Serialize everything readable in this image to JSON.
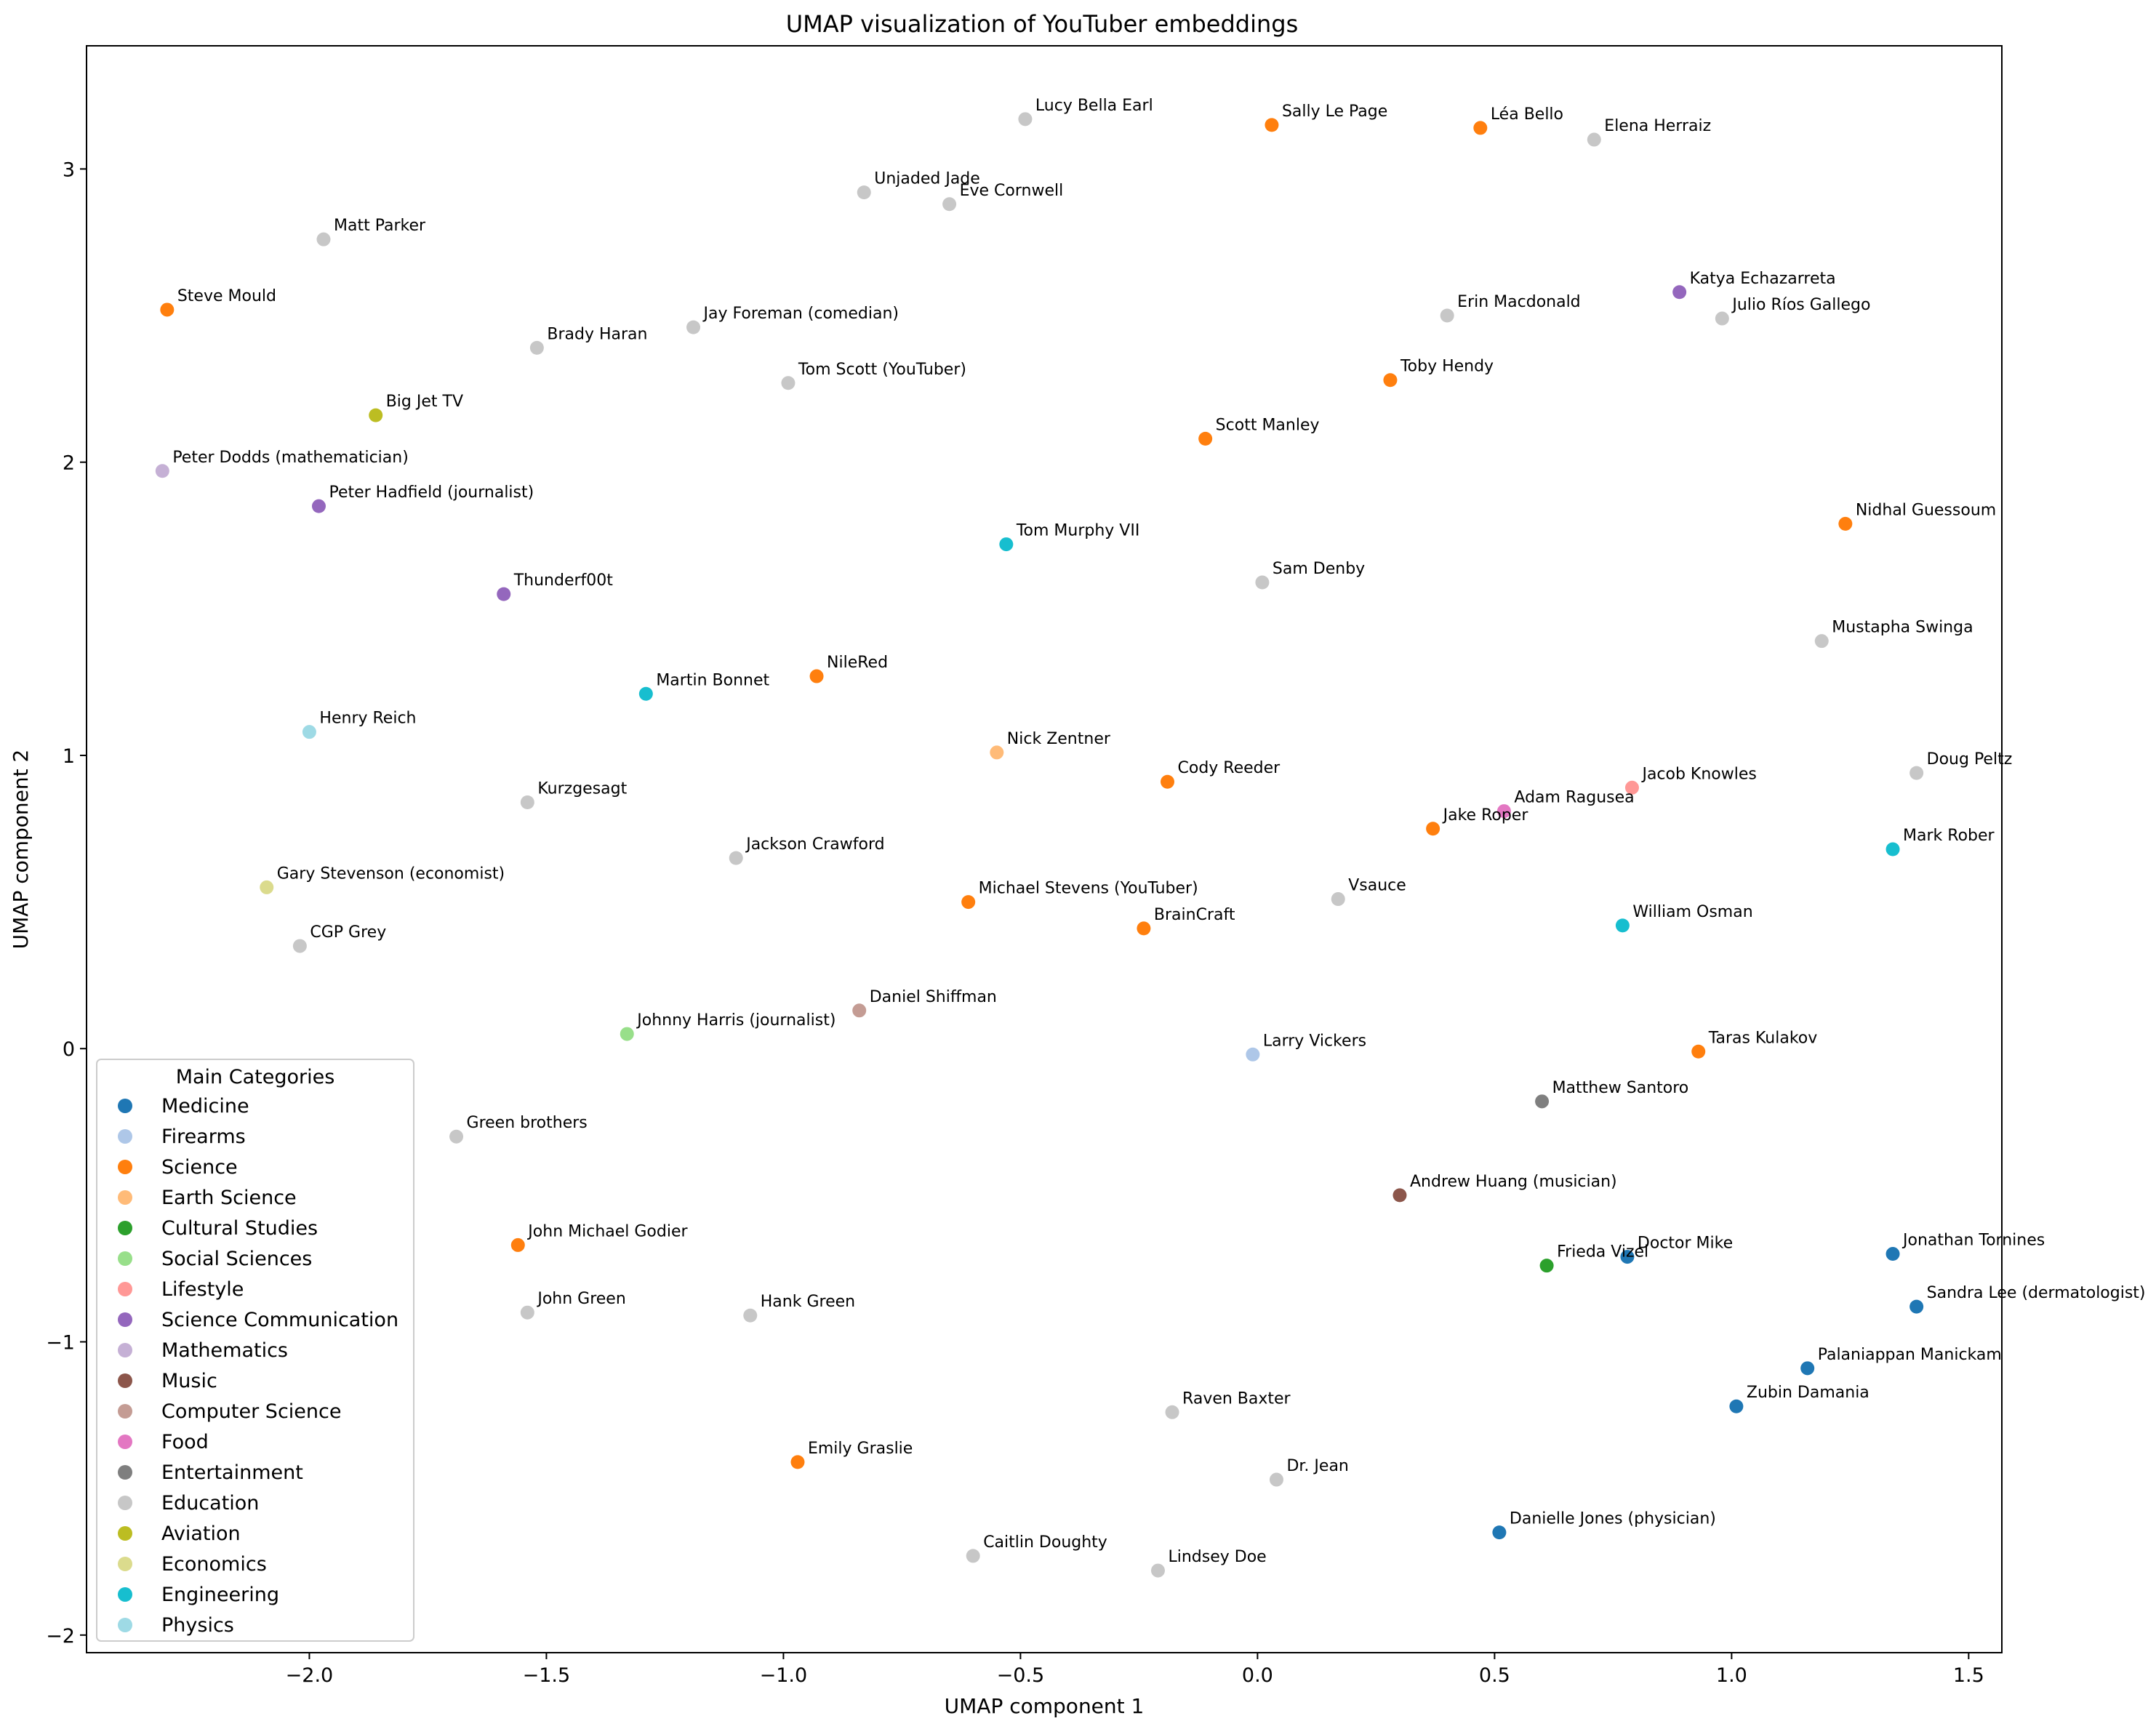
{
  "chart_data": {
    "type": "scatter",
    "title": "UMAP visualization of YouTuber embeddings",
    "xlabel": "UMAP component 1",
    "ylabel": "UMAP component 2",
    "xlim": [
      -2.47,
      1.57
    ],
    "ylim": [
      -2.06,
      3.42
    ],
    "xticks": [
      -2.0,
      -1.5,
      -1.0,
      -0.5,
      0.0,
      0.5,
      1.0,
      1.5
    ],
    "yticks": [
      -2,
      -1,
      0,
      1,
      2,
      3
    ],
    "xtick_labels": [
      "−2.0",
      "−1.5",
      "−1.0",
      "−0.5",
      "0.0",
      "0.5",
      "1.0",
      "1.5"
    ],
    "ytick_labels": [
      "−2",
      "−1",
      "0",
      "1",
      "2",
      "3"
    ],
    "grid": false,
    "legend": {
      "title": "Main Categories",
      "placement": "lower-left",
      "entries": [
        {
          "name": "Medicine",
          "color": "#1f77b4"
        },
        {
          "name": "Firearms",
          "color": "#aec7e8"
        },
        {
          "name": "Science",
          "color": "#ff7f0e"
        },
        {
          "name": "Earth Science",
          "color": "#ffbb78"
        },
        {
          "name": "Cultural Studies",
          "color": "#2ca02c"
        },
        {
          "name": "Social Sciences",
          "color": "#98df8a"
        },
        {
          "name": "Lifestyle",
          "color": "#ff9896"
        },
        {
          "name": "Science Communication",
          "color": "#9467bd"
        },
        {
          "name": "Mathematics",
          "color": "#c5b0d5"
        },
        {
          "name": "Music",
          "color": "#8c564b"
        },
        {
          "name": "Computer Science",
          "color": "#c49c94"
        },
        {
          "name": "Food",
          "color": "#e377c2"
        },
        {
          "name": "Entertainment",
          "color": "#7f7f7f"
        },
        {
          "name": "Education",
          "color": "#c7c7c7"
        },
        {
          "name": "Aviation",
          "color": "#bcbd22"
        },
        {
          "name": "Economics",
          "color": "#dbdb8d"
        },
        {
          "name": "Engineering",
          "color": "#17becf"
        },
        {
          "name": "Physics",
          "color": "#9edae5"
        }
      ]
    },
    "points": [
      {
        "label": "Lucy Bella Earl",
        "x": -0.49,
        "y": 3.17,
        "category": "Education"
      },
      {
        "label": "Sally Le Page",
        "x": 0.03,
        "y": 3.15,
        "category": "Science"
      },
      {
        "label": "Léa Bello",
        "x": 0.47,
        "y": 3.14,
        "category": "Science"
      },
      {
        "label": "Elena Herraiz",
        "x": 0.71,
        "y": 3.1,
        "category": "Education"
      },
      {
        "label": "Unjaded Jade",
        "x": -0.83,
        "y": 2.92,
        "category": "Education"
      },
      {
        "label": "Eve Cornwell",
        "x": -0.65,
        "y": 2.88,
        "category": "Education"
      },
      {
        "label": "Matt Parker",
        "x": -1.97,
        "y": 2.76,
        "category": "Education"
      },
      {
        "label": "Steve Mould",
        "x": -2.3,
        "y": 2.52,
        "category": "Science"
      },
      {
        "label": "Katya Echazarreta",
        "x": 0.89,
        "y": 2.58,
        "category": "Science Communication"
      },
      {
        "label": "Erin Macdonald",
        "x": 0.4,
        "y": 2.5,
        "category": "Education"
      },
      {
        "label": "Julio Ríos Gallego",
        "x": 0.98,
        "y": 2.49,
        "category": "Education"
      },
      {
        "label": "Jay Foreman (comedian)",
        "x": -1.19,
        "y": 2.46,
        "category": "Education"
      },
      {
        "label": "Brady Haran",
        "x": -1.52,
        "y": 2.39,
        "category": "Education"
      },
      {
        "label": "Toby Hendy",
        "x": 0.28,
        "y": 2.28,
        "category": "Science"
      },
      {
        "label": "Tom Scott (YouTuber)",
        "x": -0.99,
        "y": 2.27,
        "category": "Education"
      },
      {
        "label": "Big Jet TV",
        "x": -1.86,
        "y": 2.16,
        "category": "Aviation"
      },
      {
        "label": "Scott Manley",
        "x": -0.11,
        "y": 2.08,
        "category": "Science"
      },
      {
        "label": "Peter Dodds (mathematician)",
        "x": -2.31,
        "y": 1.97,
        "category": "Mathematics"
      },
      {
        "label": "Peter Hadfield (journalist)",
        "x": -1.98,
        "y": 1.85,
        "category": "Science Communication"
      },
      {
        "label": "Nidhal Guessoum",
        "x": 1.24,
        "y": 1.79,
        "category": "Science"
      },
      {
        "label": "Tom Murphy VII",
        "x": -0.53,
        "y": 1.72,
        "category": "Engineering"
      },
      {
        "label": "Sam Denby",
        "x": 0.01,
        "y": 1.59,
        "category": "Education"
      },
      {
        "label": "Thunderf00t",
        "x": -1.59,
        "y": 1.55,
        "category": "Science Communication"
      },
      {
        "label": "Mustapha Swinga",
        "x": 1.19,
        "y": 1.39,
        "category": "Education"
      },
      {
        "label": "NileRed",
        "x": -0.93,
        "y": 1.27,
        "category": "Science"
      },
      {
        "label": "Martin Bonnet",
        "x": -1.29,
        "y": 1.21,
        "category": "Engineering"
      },
      {
        "label": "Henry Reich",
        "x": -2.0,
        "y": 1.08,
        "category": "Physics"
      },
      {
        "label": "Nick Zentner",
        "x": -0.55,
        "y": 1.01,
        "category": "Earth Science"
      },
      {
        "label": "Doug Peltz",
        "x": 1.39,
        "y": 0.94,
        "category": "Education"
      },
      {
        "label": "Cody Reeder",
        "x": -0.19,
        "y": 0.91,
        "category": "Science"
      },
      {
        "label": "Jacob Knowles",
        "x": 0.79,
        "y": 0.89,
        "category": "Lifestyle"
      },
      {
        "label": "Kurzgesagt",
        "x": -1.54,
        "y": 0.84,
        "category": "Education"
      },
      {
        "label": "Adam Ragusea",
        "x": 0.52,
        "y": 0.81,
        "category": "Food"
      },
      {
        "label": "Jake Roper",
        "x": 0.37,
        "y": 0.75,
        "category": "Science"
      },
      {
        "label": "Mark Rober",
        "x": 1.34,
        "y": 0.68,
        "category": "Engineering"
      },
      {
        "label": "Jackson Crawford",
        "x": -1.1,
        "y": 0.65,
        "category": "Education"
      },
      {
        "label": "Gary Stevenson (economist)",
        "x": -2.09,
        "y": 0.55,
        "category": "Economics"
      },
      {
        "label": "Vsauce",
        "x": 0.17,
        "y": 0.51,
        "category": "Education"
      },
      {
        "label": "Michael Stevens (YouTuber)",
        "x": -0.61,
        "y": 0.5,
        "category": "Science"
      },
      {
        "label": "William Osman",
        "x": 0.77,
        "y": 0.42,
        "category": "Engineering"
      },
      {
        "label": "BrainCraft",
        "x": -0.24,
        "y": 0.41,
        "category": "Science"
      },
      {
        "label": "CGP Grey",
        "x": -2.02,
        "y": 0.35,
        "category": "Education"
      },
      {
        "label": "Daniel Shiffman",
        "x": -0.84,
        "y": 0.13,
        "category": "Computer Science"
      },
      {
        "label": "Johnny Harris (journalist)",
        "x": -1.33,
        "y": 0.05,
        "category": "Social Sciences"
      },
      {
        "label": "Larry Vickers",
        "x": -0.01,
        "y": -0.02,
        "category": "Firearms"
      },
      {
        "label": "Taras Kulakov",
        "x": 0.93,
        "y": -0.01,
        "category": "Science"
      },
      {
        "label": "Matthew Santoro",
        "x": 0.6,
        "y": -0.18,
        "category": "Entertainment"
      },
      {
        "label": "Green brothers",
        "x": -1.69,
        "y": -0.3,
        "category": "Education"
      },
      {
        "label": "Andrew Huang (musician)",
        "x": 0.3,
        "y": -0.5,
        "category": "Music"
      },
      {
        "label": "John Michael Godier",
        "x": -1.56,
        "y": -0.67,
        "category": "Science"
      },
      {
        "label": "Jonathan Tornines",
        "x": 1.34,
        "y": -0.7,
        "category": "Medicine"
      },
      {
        "label": "Doctor Mike",
        "x": 0.78,
        "y": -0.71,
        "category": "Medicine"
      },
      {
        "label": "Frieda Vizel",
        "x": 0.61,
        "y": -0.74,
        "category": "Cultural Studies"
      },
      {
        "label": "Sandra Lee (dermatologist)",
        "x": 1.39,
        "y": -0.88,
        "category": "Medicine"
      },
      {
        "label": "John Green",
        "x": -1.54,
        "y": -0.9,
        "category": "Education"
      },
      {
        "label": "Hank Green",
        "x": -1.07,
        "y": -0.91,
        "category": "Education"
      },
      {
        "label": "Palaniappan Manickam",
        "x": 1.16,
        "y": -1.09,
        "category": "Medicine"
      },
      {
        "label": "Zubin Damania",
        "x": 1.01,
        "y": -1.22,
        "category": "Medicine"
      },
      {
        "label": "Raven Baxter",
        "x": -0.18,
        "y": -1.24,
        "category": "Education"
      },
      {
        "label": "Emily Graslie",
        "x": -0.97,
        "y": -1.41,
        "category": "Science"
      },
      {
        "label": "Dr. Jean",
        "x": 0.04,
        "y": -1.47,
        "category": "Education"
      },
      {
        "label": "Danielle Jones (physician)",
        "x": 0.51,
        "y": -1.65,
        "category": "Medicine"
      },
      {
        "label": "Caitlin Doughty",
        "x": -0.6,
        "y": -1.73,
        "category": "Education"
      },
      {
        "label": "Lindsey Doe",
        "x": -0.21,
        "y": -1.78,
        "category": "Education"
      }
    ]
  }
}
